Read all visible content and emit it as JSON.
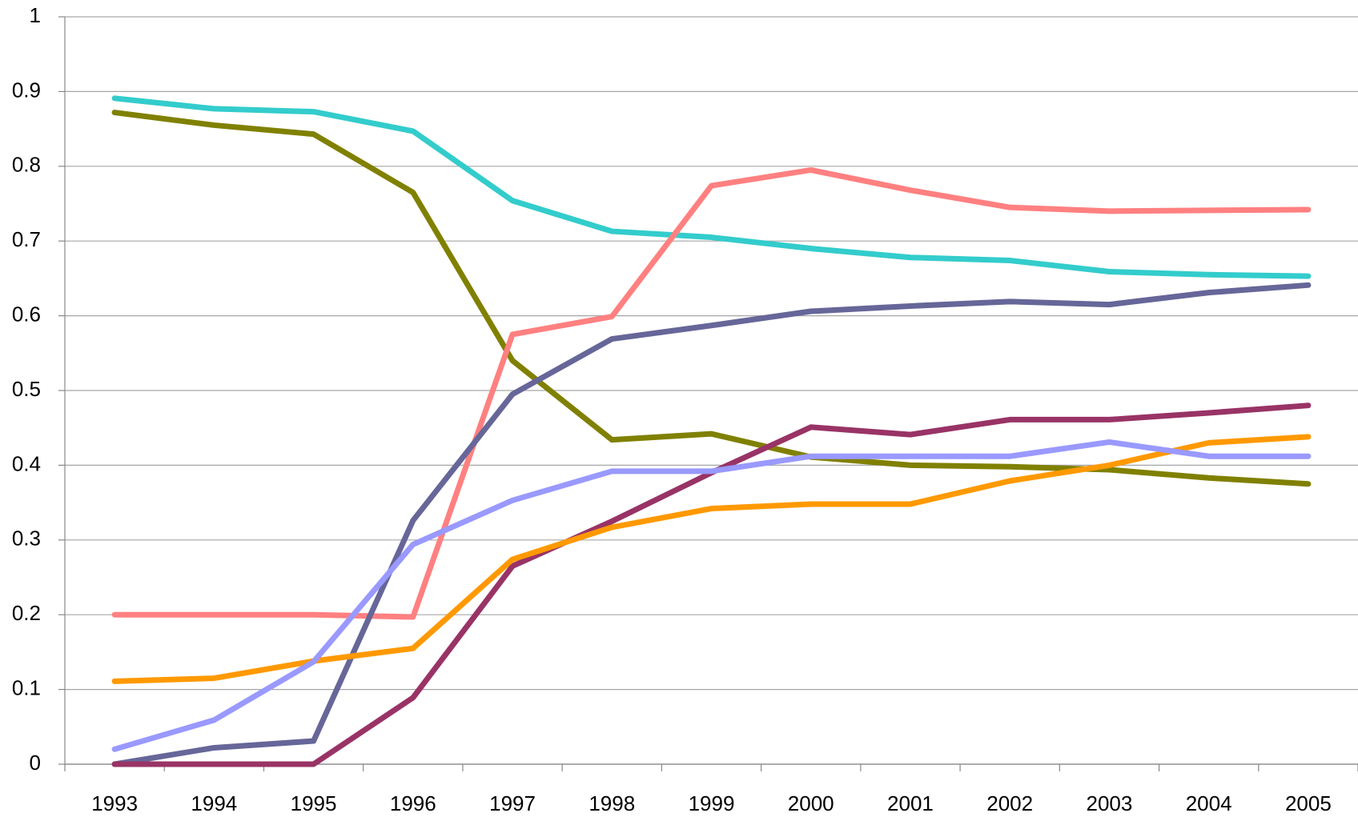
{
  "chart_data": {
    "type": "line",
    "categories": [
      "1993",
      "1994",
      "1995",
      "1996",
      "1997",
      "1998",
      "1999",
      "2000",
      "2001",
      "2002",
      "2003",
      "2004",
      "2005"
    ],
    "series": [
      {
        "color": "#33cccc",
        "values": [
          0.891,
          0.877,
          0.873,
          0.847,
          0.754,
          0.713,
          0.705,
          0.69,
          0.678,
          0.674,
          0.659,
          0.655,
          0.653
        ]
      },
      {
        "color": "#808000",
        "values": [
          0.872,
          0.855,
          0.843,
          0.765,
          0.54,
          0.434,
          0.442,
          0.411,
          0.4,
          0.398,
          0.394,
          0.383,
          0.375
        ]
      },
      {
        "color": "#ff8080",
        "values": [
          0.2,
          0.2,
          0.2,
          0.197,
          0.575,
          0.599,
          0.774,
          0.795,
          0.768,
          0.745,
          0.74,
          0.741,
          0.742
        ]
      },
      {
        "color": "#666699",
        "values": [
          0,
          0.022,
          0.031,
          0.326,
          0.495,
          0.569,
          0.587,
          0.606,
          0.613,
          0.619,
          0.615,
          0.631,
          0.641
        ]
      },
      {
        "color": "#993366",
        "values": [
          0,
          0,
          0,
          0.089,
          0.265,
          0.325,
          0.39,
          0.451,
          0.441,
          0.461,
          0.461,
          0.47,
          0.48
        ]
      },
      {
        "color": "#ff9900",
        "values": [
          0.111,
          0.115,
          0.138,
          0.155,
          0.274,
          0.317,
          0.342,
          0.348,
          0.348,
          0.379,
          0.4,
          0.43,
          0.438
        ]
      },
      {
        "color": "#9999ff",
        "values": [
          0.02,
          0.059,
          0.137,
          0.294,
          0.353,
          0.392,
          0.392,
          0.412,
          0.412,
          0.412,
          0.431,
          0.412,
          0.412
        ]
      }
    ],
    "ylim": [
      0,
      1
    ],
    "yticks": [
      0,
      0.1,
      0.2,
      0.3,
      0.4,
      0.5,
      0.6,
      0.7,
      0.8,
      0.9,
      1
    ],
    "grid": true
  }
}
